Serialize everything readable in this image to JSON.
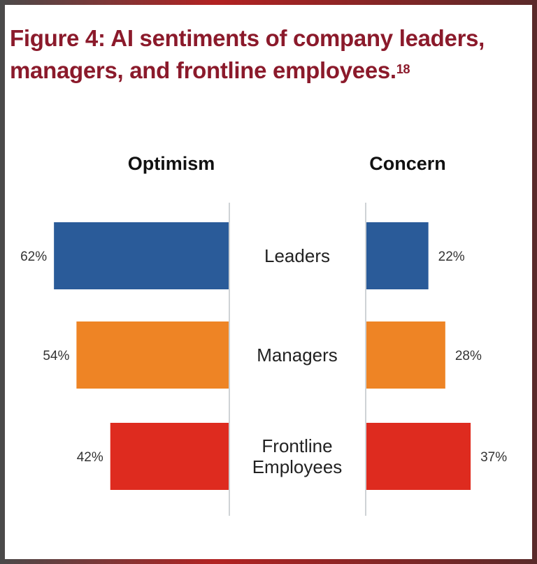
{
  "chart_data": {
    "type": "bar",
    "title": "Figure 4: AI sentiments of company leaders, managers, and frontline employees.",
    "title_line1": "Figure 4: AI sentiments of company leaders,",
    "title_line2": "managers, and frontline employees.",
    "title_footnote": "18",
    "categories": [
      "Leaders",
      "Managers",
      "Frontline Employees"
    ],
    "category_lines": [
      [
        "Leaders"
      ],
      [
        "Managers"
      ],
      [
        "Frontline",
        "Employees"
      ]
    ],
    "series": [
      {
        "name": "Optimism",
        "values": [
          62,
          54,
          42
        ],
        "labels": [
          "62%",
          "54%",
          "42%"
        ]
      },
      {
        "name": "Concern",
        "values": [
          22,
          28,
          37
        ],
        "labels": [
          "22%",
          "28%",
          "37%"
        ]
      }
    ],
    "colors": [
      "#2a5b99",
      "#ee8425",
      "#de2b1f"
    ],
    "axis_color": "#cfd3d6",
    "value_unit": "%"
  }
}
